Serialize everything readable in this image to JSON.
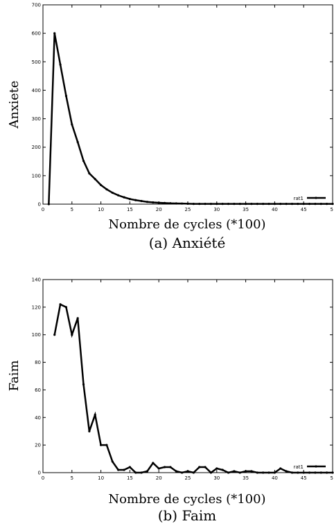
{
  "chart_data": [
    {
      "type": "line",
      "caption": "(a) Anxiété",
      "title": "",
      "xlabel": "Nombre de cycles (*100)",
      "ylabel": "Anxiete",
      "xlim": [
        0,
        50
      ],
      "ylim": [
        0,
        700
      ],
      "xticks": [
        "0",
        "5",
        "10",
        "15",
        "20",
        "25",
        "30",
        "35",
        "40",
        "45",
        "5"
      ],
      "yticks": [
        "0",
        "100",
        "200",
        "300",
        "400",
        "500",
        "600",
        "700"
      ],
      "grid": false,
      "legend_position": "bottom-right",
      "series": [
        {
          "name": "rat1",
          "color": "#000000",
          "x": [
            1,
            2,
            3,
            4,
            5,
            6,
            7,
            8,
            9,
            10,
            11,
            12,
            13,
            14,
            15,
            16,
            17,
            18,
            19,
            20,
            21,
            22,
            23,
            24,
            25,
            26,
            27,
            28,
            29,
            30,
            31,
            32,
            33,
            34,
            35,
            36,
            37,
            38,
            39,
            40,
            41,
            42,
            43,
            44,
            45,
            46,
            47,
            48,
            49,
            50
          ],
          "y": [
            0,
            600,
            490,
            380,
            280,
            218,
            152,
            108,
            88,
            67,
            52,
            40,
            31,
            24,
            18,
            14,
            11,
            8,
            6,
            5,
            4,
            3,
            2.5,
            2,
            1.5,
            1,
            1,
            1,
            1,
            1,
            1,
            1,
            1,
            1,
            1,
            1,
            1,
            1,
            1,
            1,
            1,
            1,
            1,
            1,
            1,
            1,
            1,
            1,
            1,
            1
          ]
        }
      ]
    },
    {
      "type": "line",
      "caption": "(b) Faim",
      "title": "",
      "xlabel": "Nombre de cycles (*100)",
      "ylabel": "Faim",
      "xlim": [
        0,
        50
      ],
      "ylim": [
        0,
        140
      ],
      "xticks": [
        "0",
        "5",
        "10",
        "15",
        "20",
        "25",
        "30",
        "35",
        "40",
        "45",
        "5"
      ],
      "yticks": [
        "0",
        "20",
        "40",
        "60",
        "80",
        "100",
        "120",
        "140"
      ],
      "grid": false,
      "legend_position": "bottom-right",
      "series": [
        {
          "name": "rat1",
          "color": "#000000",
          "x": [
            2,
            3,
            4,
            5,
            6,
            7,
            8,
            9,
            10,
            11,
            12,
            13,
            14,
            15,
            16,
            17,
            18,
            19,
            20,
            21,
            22,
            23,
            24,
            25,
            26,
            27,
            28,
            29,
            30,
            31,
            32,
            33,
            34,
            35,
            36,
            37,
            38,
            39,
            40,
            41,
            42,
            43,
            44,
            45,
            46,
            47,
            48,
            49,
            50
          ],
          "y": [
            100,
            122,
            120,
            100,
            112,
            64,
            30,
            42,
            20,
            20,
            8,
            2,
            2,
            4,
            0,
            0,
            1,
            7,
            3,
            4,
            4,
            1,
            0,
            1,
            0,
            4,
            4,
            0,
            3,
            2,
            0,
            1,
            0,
            1,
            1,
            0,
            0,
            0,
            0,
            3,
            1,
            0,
            0,
            0,
            0,
            0,
            0,
            0,
            0
          ]
        }
      ]
    }
  ]
}
